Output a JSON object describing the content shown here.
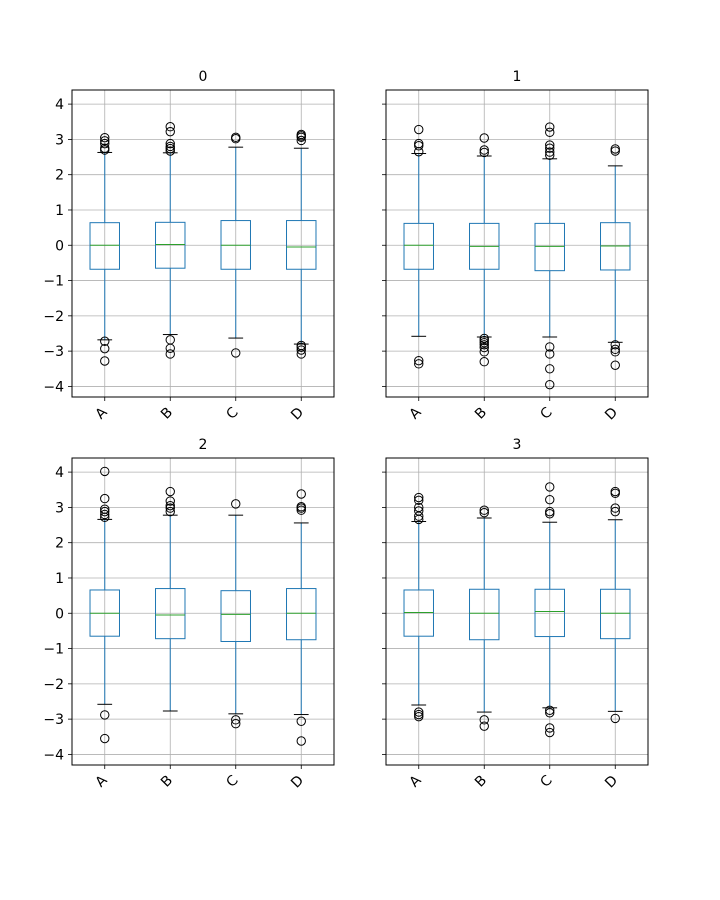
{
  "colors": {
    "box": "#1f77b4",
    "median": "#2ca02c",
    "grid": "#b0b0b0",
    "axes": "#000000",
    "background": "#ffffff"
  },
  "chart_data": [
    {
      "type": "box",
      "title": "0",
      "categories": [
        "A",
        "B",
        "C",
        "D"
      ],
      "ylim": [
        -4.3,
        4.4
      ],
      "yticks": [
        -4,
        -3,
        -2,
        -1,
        0,
        1,
        2,
        3,
        4
      ],
      "ytick_labels": [
        "−4",
        "−3",
        "−2",
        "−1",
        "0",
        "1",
        "2",
        "3",
        "4"
      ],
      "grid": true,
      "boxes": [
        {
          "q1": -0.68,
          "median": 0.0,
          "q3": 0.64,
          "whisker_low": -2.68,
          "whisker_high": 2.63,
          "outliers": [
            -3.28,
            -2.93,
            -2.72,
            2.7,
            2.75,
            2.88,
            2.96,
            3.05
          ]
        },
        {
          "q1": -0.65,
          "median": 0.02,
          "q3": 0.65,
          "whisker_low": -2.53,
          "whisker_high": 2.62,
          "outliers": [
            -3.08,
            -2.92,
            -2.68,
            2.67,
            2.74,
            2.8,
            2.88,
            3.22,
            3.36
          ]
        },
        {
          "q1": -0.68,
          "median": 0.0,
          "q3": 0.7,
          "whisker_low": -2.63,
          "whisker_high": 2.78,
          "outliers": [
            -3.05,
            3.02,
            3.06
          ]
        },
        {
          "q1": -0.68,
          "median": -0.05,
          "q3": 0.7,
          "whisker_low": -2.8,
          "whisker_high": 2.75,
          "outliers": [
            -3.08,
            -2.97,
            -2.89,
            -2.84,
            2.97,
            3.06,
            3.1,
            3.14
          ]
        }
      ]
    },
    {
      "type": "box",
      "title": "1",
      "categories": [
        "A",
        "B",
        "C",
        "D"
      ],
      "ylim": [
        -4.3,
        4.4
      ],
      "yticks": [
        -4,
        -3,
        -2,
        -1,
        0,
        1,
        2,
        3,
        4
      ],
      "ytick_labels": [
        "",
        "",
        "",
        "",
        "",
        "",
        "",
        "",
        ""
      ],
      "grid": true,
      "boxes": [
        {
          "q1": -0.68,
          "median": 0.0,
          "q3": 0.62,
          "whisker_low": -2.58,
          "whisker_high": 2.6,
          "outliers": [
            -3.36,
            -3.27,
            2.65,
            2.82,
            2.88,
            3.28
          ]
        },
        {
          "q1": -0.68,
          "median": -0.03,
          "q3": 0.62,
          "whisker_low": -2.6,
          "whisker_high": 2.53,
          "outliers": [
            -3.3,
            -3.02,
            -2.9,
            -2.82,
            -2.76,
            -2.7,
            -2.64,
            2.63,
            2.7,
            3.04
          ]
        },
        {
          "q1": -0.72,
          "median": -0.03,
          "q3": 0.62,
          "whisker_low": -2.6,
          "whisker_high": 2.45,
          "outliers": [
            -3.95,
            -3.5,
            -3.08,
            -2.88,
            2.55,
            2.64,
            2.75,
            2.84,
            3.2,
            3.35
          ]
        },
        {
          "q1": -0.7,
          "median": -0.02,
          "q3": 0.64,
          "whisker_low": -2.75,
          "whisker_high": 2.25,
          "outliers": [
            -3.4,
            -3.02,
            -2.95,
            -2.82,
            2.67,
            2.73
          ]
        }
      ]
    },
    {
      "type": "box",
      "title": "2",
      "categories": [
        "A",
        "B",
        "C",
        "D"
      ],
      "ylim": [
        -4.3,
        4.4
      ],
      "yticks": [
        -4,
        -3,
        -2,
        -1,
        0,
        1,
        2,
        3,
        4
      ],
      "ytick_labels": [
        "−4",
        "−3",
        "−2",
        "−1",
        "0",
        "1",
        "2",
        "3",
        "4"
      ],
      "grid": true,
      "boxes": [
        {
          "q1": -0.65,
          "median": 0.0,
          "q3": 0.66,
          "whisker_low": -2.58,
          "whisker_high": 2.66,
          "outliers": [
            -3.55,
            -2.88,
            2.72,
            2.8,
            2.88,
            2.95,
            3.25,
            4.02
          ]
        },
        {
          "q1": -0.72,
          "median": -0.05,
          "q3": 0.7,
          "whisker_low": -2.77,
          "whisker_high": 2.78,
          "outliers": [
            2.88,
            2.98,
            3.05,
            3.18,
            3.45
          ]
        },
        {
          "q1": -0.8,
          "median": -0.03,
          "q3": 0.64,
          "whisker_low": -2.85,
          "whisker_high": 2.78,
          "outliers": [
            -3.13,
            -3.02,
            3.1
          ]
        },
        {
          "q1": -0.75,
          "median": 0.0,
          "q3": 0.7,
          "whisker_low": -2.87,
          "whisker_high": 2.56,
          "outliers": [
            -3.62,
            -3.06,
            2.92,
            2.98,
            3.02,
            3.38
          ]
        }
      ]
    },
    {
      "type": "box",
      "title": "3",
      "categories": [
        "A",
        "B",
        "C",
        "D"
      ],
      "ylim": [
        -4.3,
        4.4
      ],
      "yticks": [
        -4,
        -3,
        -2,
        -1,
        0,
        1,
        2,
        3,
        4
      ],
      "ytick_labels": [
        "",
        "",
        "",
        "",
        "",
        "",
        "",
        "",
        ""
      ],
      "grid": true,
      "boxes": [
        {
          "q1": -0.65,
          "median": 0.02,
          "q3": 0.66,
          "whisker_low": -2.6,
          "whisker_high": 2.6,
          "outliers": [
            -2.93,
            -2.87,
            -2.8,
            2.66,
            2.75,
            2.9,
            3.0,
            3.2,
            3.28
          ]
        },
        {
          "q1": -0.75,
          "median": 0.0,
          "q3": 0.68,
          "whisker_low": -2.8,
          "whisker_high": 2.7,
          "outliers": [
            -3.2,
            -3.02,
            2.85,
            2.92
          ]
        },
        {
          "q1": -0.66,
          "median": 0.05,
          "q3": 0.68,
          "whisker_low": -2.68,
          "whisker_high": 2.58,
          "outliers": [
            -3.38,
            -3.25,
            -2.82,
            -2.75,
            2.82,
            2.88,
            3.22,
            3.58
          ]
        },
        {
          "q1": -0.72,
          "median": 0.0,
          "q3": 0.68,
          "whisker_low": -2.78,
          "whisker_high": 2.65,
          "outliers": [
            -2.98,
            2.88,
            2.98,
            3.4,
            3.45
          ]
        }
      ]
    }
  ]
}
